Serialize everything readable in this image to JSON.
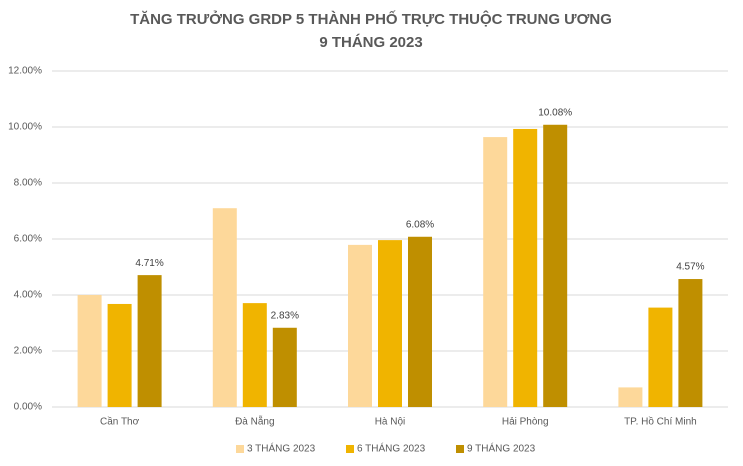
{
  "chart_data": {
    "type": "bar",
    "title": [
      "TĂNG TRƯỞNG GRDP 5 THÀNH PHỐ TRỰC THUỘC TRUNG ƯƠNG",
      "9 THÁNG 2023"
    ],
    "categories": [
      "Cần Thơ",
      "Đà Nẵng",
      "Hà Nội",
      "Hải Phòng",
      "TP. Hồ Chí Minh"
    ],
    "series": [
      {
        "name": "3 THÁNG 2023",
        "color": "#fdd89a",
        "values": [
          4.0,
          7.1,
          5.79,
          9.64,
          0.7
        ]
      },
      {
        "name": "6 THÁNG 2023",
        "color": "#f0b400",
        "values": [
          3.68,
          3.71,
          5.96,
          9.93,
          3.55
        ]
      },
      {
        "name": "9 THÁNG 2023",
        "color": "#bf8f00",
        "values": [
          4.71,
          2.83,
          6.08,
          10.08,
          4.57
        ],
        "value_labels": [
          "4.71%",
          "2.83%",
          "6.08%",
          "10.08%",
          "4.57%"
        ]
      }
    ],
    "ylim": [
      0,
      12
    ],
    "yticks": [
      {
        "value": 0,
        "label": "0.00%"
      },
      {
        "value": 2,
        "label": "2.00%"
      },
      {
        "value": 4,
        "label": "4.00%"
      },
      {
        "value": 6,
        "label": "6.00%"
      },
      {
        "value": 8,
        "label": "8.00%"
      },
      {
        "value": 10,
        "label": "10.00%"
      },
      {
        "value": 12,
        "label": "12.00%"
      }
    ],
    "grid": true,
    "legend": "bottom"
  }
}
